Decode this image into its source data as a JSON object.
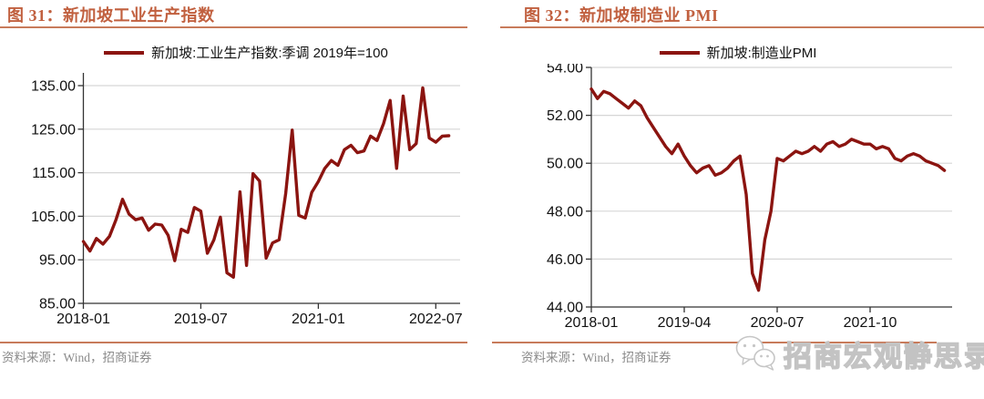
{
  "source_note": "资料来源：Wind，招商证券",
  "watermark": {
    "icon": "wechat-icon",
    "text": "招商宏观静思录"
  },
  "colors": {
    "line": "#8B1410",
    "title_accent": "#C1603F",
    "rule": "#C87B5B",
    "grid": "#D6D6D6",
    "axis": "#333333",
    "tick_label": "#111111",
    "source_text": "#8A8A8A",
    "watermark": "#C3C3C3"
  },
  "chart_data": [
    {
      "type": "line",
      "title": "图 31：新加坡工业生产指数",
      "legend_position": "top",
      "grid": true,
      "ylim": [
        85,
        135
      ],
      "yticks": [
        85,
        95,
        105,
        115,
        125,
        135
      ],
      "ytick_labels": [
        "85.00",
        "95.00",
        "105.00",
        "115.00",
        "125.00",
        "135.00"
      ],
      "xticks": [
        "2018-01",
        "2019-07",
        "2021-01",
        "2022-07"
      ],
      "xtick_indices": [
        0,
        18,
        36,
        54
      ],
      "x": [
        "2018-01",
        "2018-02",
        "2018-03",
        "2018-04",
        "2018-05",
        "2018-06",
        "2018-07",
        "2018-08",
        "2018-09",
        "2018-10",
        "2018-11",
        "2018-12",
        "2019-01",
        "2019-02",
        "2019-03",
        "2019-04",
        "2019-05",
        "2019-06",
        "2019-07",
        "2019-08",
        "2019-09",
        "2019-10",
        "2019-11",
        "2019-12",
        "2020-01",
        "2020-02",
        "2020-03",
        "2020-04",
        "2020-05",
        "2020-06",
        "2020-07",
        "2020-08",
        "2020-09",
        "2020-10",
        "2020-11",
        "2020-12",
        "2021-01",
        "2021-02",
        "2021-03",
        "2021-04",
        "2021-05",
        "2021-06",
        "2021-07",
        "2021-08",
        "2021-09",
        "2021-10",
        "2021-11",
        "2021-12",
        "2022-01",
        "2022-02",
        "2022-03",
        "2022-04",
        "2022-05",
        "2022-06",
        "2022-07",
        "2022-08",
        "2022-09"
      ],
      "series": [
        {
          "name": "新加坡:工业生产指数:季调 2019年=100",
          "color": "#8B1410",
          "values": [
            99.2,
            97.0,
            99.9,
            98.6,
            100.4,
            104.2,
            108.9,
            105.5,
            104.2,
            104.6,
            101.8,
            103.2,
            103.0,
            100.6,
            94.8,
            102.0,
            101.3,
            107.0,
            106.2,
            96.5,
            99.6,
            104.8,
            92.0,
            91.0,
            110.6,
            93.7,
            114.8,
            113.1,
            95.4,
            98.9,
            99.6,
            110.3,
            124.8,
            105.2,
            104.6,
            110.5,
            113.0,
            116.0,
            117.8,
            116.7,
            120.3,
            121.3,
            119.6,
            120.0,
            123.4,
            122.4,
            126.3,
            131.6,
            116.0,
            132.6,
            120.3,
            121.7,
            134.5,
            123.0,
            122.0,
            123.4,
            123.5
          ]
        }
      ]
    },
    {
      "type": "line",
      "title": "图 32：新加坡制造业 PMI",
      "legend_position": "top",
      "grid": true,
      "ylim": [
        44,
        54
      ],
      "yticks": [
        44,
        46,
        48,
        50,
        52,
        54
      ],
      "ytick_labels": [
        "44.00",
        "46.00",
        "48.00",
        "50.00",
        "52.00",
        "54.00"
      ],
      "xticks": [
        "2018-01",
        "2019-04",
        "2020-07",
        "2021-10"
      ],
      "xtick_indices": [
        0,
        15,
        30,
        45
      ],
      "x": [
        "2018-01",
        "2018-02",
        "2018-03",
        "2018-04",
        "2018-05",
        "2018-06",
        "2018-07",
        "2018-08",
        "2018-09",
        "2018-10",
        "2018-11",
        "2018-12",
        "2019-01",
        "2019-02",
        "2019-03",
        "2019-04",
        "2019-05",
        "2019-06",
        "2019-07",
        "2019-08",
        "2019-09",
        "2019-10",
        "2019-11",
        "2019-12",
        "2020-01",
        "2020-02",
        "2020-03",
        "2020-04",
        "2020-05",
        "2020-06",
        "2020-07",
        "2020-08",
        "2020-09",
        "2020-10",
        "2020-11",
        "2020-12",
        "2021-01",
        "2021-02",
        "2021-03",
        "2021-04",
        "2021-05",
        "2021-06",
        "2021-07",
        "2021-08",
        "2021-09",
        "2021-10",
        "2021-11",
        "2021-12",
        "2022-01",
        "2022-02",
        "2022-03",
        "2022-04",
        "2022-05",
        "2022-06",
        "2022-07",
        "2022-08",
        "2022-09",
        "2022-10"
      ],
      "series": [
        {
          "name": "新加坡:制造业PMI",
          "color": "#8B1410",
          "values": [
            53.1,
            52.7,
            53.0,
            52.9,
            52.7,
            52.5,
            52.3,
            52.6,
            52.4,
            51.9,
            51.5,
            51.1,
            50.7,
            50.4,
            50.8,
            50.3,
            49.9,
            49.6,
            49.8,
            49.9,
            49.5,
            49.6,
            49.8,
            50.1,
            50.3,
            48.7,
            45.4,
            44.7,
            46.8,
            48.0,
            50.2,
            50.1,
            50.3,
            50.5,
            50.4,
            50.5,
            50.7,
            50.5,
            50.8,
            50.9,
            50.7,
            50.8,
            51.0,
            50.9,
            50.8,
            50.8,
            50.6,
            50.7,
            50.6,
            50.2,
            50.1,
            50.3,
            50.4,
            50.3,
            50.1,
            50.0,
            49.9,
            49.7
          ]
        }
      ]
    }
  ]
}
